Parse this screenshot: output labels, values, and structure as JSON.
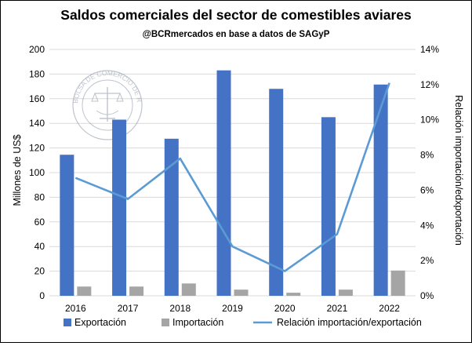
{
  "chart_data": {
    "type": "bar",
    "title": "Saldos comerciales del sector de comestibles aviares",
    "subtitle": "@BCRmercados en base a datos de SAGyP",
    "categories": [
      "2016",
      "2017",
      "2018",
      "2019",
      "2020",
      "2021",
      "2022"
    ],
    "series": [
      {
        "name": "Exportación",
        "type": "bar",
        "axis": "left",
        "color": "#4472C4",
        "values": [
          114.5,
          143,
          127.5,
          183,
          168,
          145,
          171.5
        ]
      },
      {
        "name": "Importación",
        "type": "bar",
        "axis": "left",
        "color": "#A5A5A5",
        "values": [
          7.5,
          7.5,
          10,
          5,
          2.5,
          5,
          20.5
        ]
      },
      {
        "name": "Relación importación/exportación",
        "type": "line",
        "axis": "right",
        "color": "#5B9BD5",
        "values": [
          6.7,
          5.5,
          7.8,
          2.8,
          1.4,
          3.5,
          12.1
        ]
      }
    ],
    "ylabel": "Millones de US$",
    "ylabel_right": "Relación importación/edxportación",
    "ylim": [
      0,
      200
    ],
    "ylim_right": [
      0,
      14
    ],
    "yticks": [
      "0",
      "20",
      "40",
      "60",
      "80",
      "100",
      "120",
      "140",
      "160",
      "180",
      "200"
    ],
    "yticks_right": [
      "0%",
      "2%",
      "4%",
      "6%",
      "8%",
      "10%",
      "12%",
      "14%"
    ],
    "grid": true,
    "legend_position": "bottom",
    "watermark_text": "BOLSA DE COMERCIO DE ROSARIO"
  }
}
